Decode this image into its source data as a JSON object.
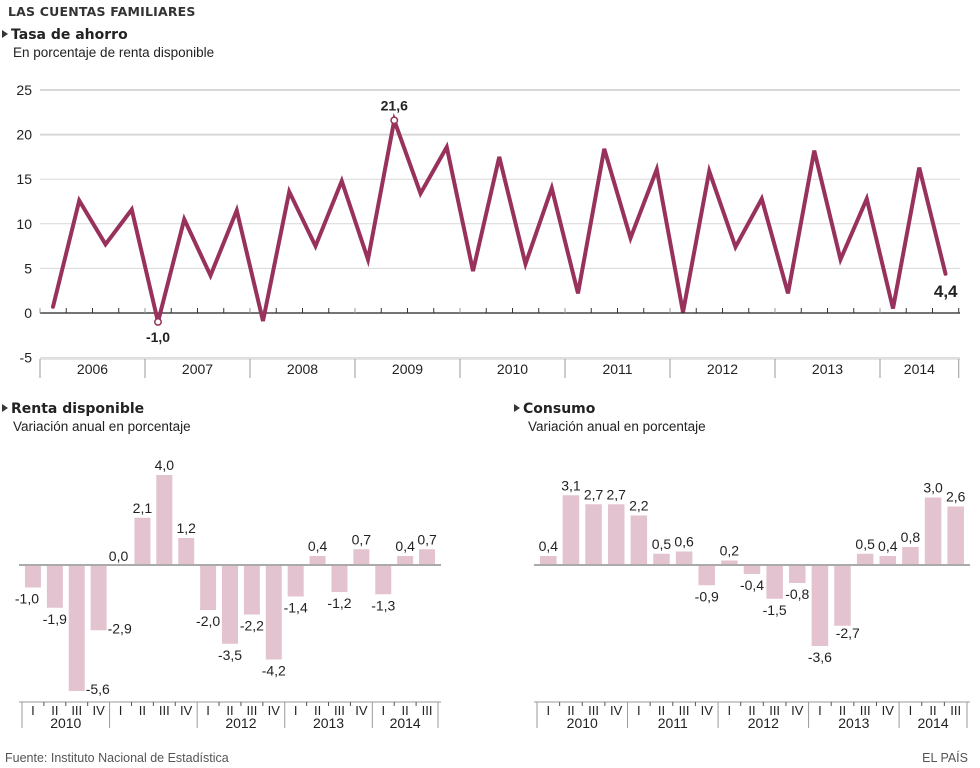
{
  "header": {
    "title": "LAS CUENTAS FAMILIARES"
  },
  "colors": {
    "line": "#98325c",
    "bar": "#e3c3cf",
    "grid": "#d8d8d8",
    "axis": "#222222",
    "zero_line_bars": "#aaaaaa"
  },
  "footer": {
    "source": "Fuente: Instituto Nacional de Estadística",
    "brand": "EL PAÍS"
  },
  "chart_data": [
    {
      "id": "tasa-ahorro",
      "type": "line",
      "title": "Tasa de ahorro",
      "subtitle": "En porcentaje de renta disponible",
      "xlabel": "",
      "ylabel": "",
      "ylim": [
        -5,
        25
      ],
      "yticks": [
        25,
        20,
        15,
        10,
        5,
        0,
        -5
      ],
      "ytick_labels": [
        "25",
        "20",
        "15",
        "10",
        "5",
        "0",
        "-5"
      ],
      "grid": true,
      "x_groups": [
        "2006",
        "2007",
        "2008",
        "2009",
        "2010",
        "2011",
        "2012",
        "2013",
        "2014"
      ],
      "x_group_quarters": [
        4,
        4,
        4,
        4,
        4,
        4,
        4,
        4,
        3
      ],
      "series": [
        {
          "name": "Tasa de ahorro",
          "values": [
            0.7,
            12.6,
            7.7,
            11.6,
            -1.0,
            10.5,
            4.2,
            11.5,
            -0.9,
            13.6,
            7.5,
            14.8,
            6.0,
            21.6,
            13.4,
            18.6,
            4.7,
            17.5,
            5.5,
            14.0,
            2.2,
            18.4,
            8.4,
            16.1,
            0.1,
            15.9,
            7.4,
            12.8,
            2.2,
            18.2,
            6.0,
            12.8,
            0.5,
            16.3,
            4.4
          ]
        }
      ],
      "annotations": [
        {
          "index": 4,
          "label": "-1,0",
          "position": "below",
          "marker": true
        },
        {
          "index": 13,
          "label": "21,6",
          "position": "above",
          "marker": true
        },
        {
          "index": 34,
          "label": "4,4",
          "position": "below-right",
          "marker": false
        }
      ]
    },
    {
      "id": "renta-disponible",
      "type": "bar",
      "title": "Renta disponible",
      "subtitle": "Variación anual en porcentaje",
      "categories": [
        "2010 I",
        "2010 II",
        "2010 III",
        "2010 IV",
        "2011 I",
        "2011 II",
        "2011 III",
        "2011 IV",
        "2012 I",
        "2012 II",
        "2012 III",
        "2012 IV",
        "2013 I",
        "2013 II",
        "2013 III",
        "2013 IV",
        "2014 I",
        "2014 II",
        "2014 III"
      ],
      "quarter_labels": [
        "I",
        "II",
        "III",
        "IV",
        "I",
        "II",
        "III",
        "IV",
        "I",
        "II",
        "III",
        "IV",
        "I",
        "II",
        "III",
        "IV",
        "I",
        "II",
        "III"
      ],
      "year_labels": [
        "2010",
        "",
        "2012",
        "2013",
        "2014"
      ],
      "values": [
        -1.0,
        -1.9,
        -5.6,
        -2.9,
        0.0,
        2.1,
        4.0,
        1.2,
        -2.0,
        -3.5,
        -2.2,
        -4.2,
        -1.4,
        0.4,
        -1.2,
        0.7,
        -1.3,
        0.4,
        0.7
      ],
      "value_labels": [
        "-1,0",
        "-1,9",
        "-5,6",
        "-2,9",
        "0,0",
        "2,1",
        "4,0",
        "1,2",
        "-2,0",
        "-3,5",
        "-2,2",
        "-4,2",
        "-1,4",
        "0,4",
        "-1,2",
        "0,7",
        "-1,3",
        "0,4",
        "0,7"
      ],
      "ylim": [
        -6,
        5
      ]
    },
    {
      "id": "consumo",
      "type": "bar",
      "title": "Consumo",
      "subtitle": "Variación anual en porcentaje",
      "categories": [
        "2010 I",
        "2010 II",
        "2010 III",
        "2010 IV",
        "2011 I",
        "2011 II",
        "2011 III",
        "2011 IV",
        "2012 I",
        "2012 II",
        "2012 III",
        "2012 IV",
        "2013 I",
        "2013 II",
        "2013 III",
        "2013 IV",
        "2014 I",
        "2014 II",
        "2014 III"
      ],
      "quarter_labels": [
        "I",
        "II",
        "III",
        "IV",
        "I",
        "II",
        "III",
        "IV",
        "I",
        "II",
        "III",
        "IV",
        "I",
        "II",
        "III",
        "IV",
        "I",
        "II",
        "III"
      ],
      "year_labels": [
        "2010",
        "2011",
        "2012",
        "2013",
        "2014"
      ],
      "values": [
        0.4,
        3.1,
        2.7,
        2.7,
        2.2,
        0.5,
        0.6,
        -0.9,
        0.2,
        -0.4,
        -1.5,
        -0.8,
        -3.6,
        -2.7,
        0.5,
        0.4,
        0.8,
        3.0,
        2.6
      ],
      "value_labels": [
        "0,4",
        "3,1",
        "2,7",
        "2,7",
        "2,2",
        "0,5",
        "0,6",
        "-0,9",
        "0,2",
        "-0,4",
        "-1,5",
        "-0,8",
        "-3,6",
        "-2,7",
        "0,5",
        "0,4",
        "0,8",
        "3,0",
        "2,6"
      ],
      "ylim": [
        -6,
        5
      ]
    }
  ]
}
